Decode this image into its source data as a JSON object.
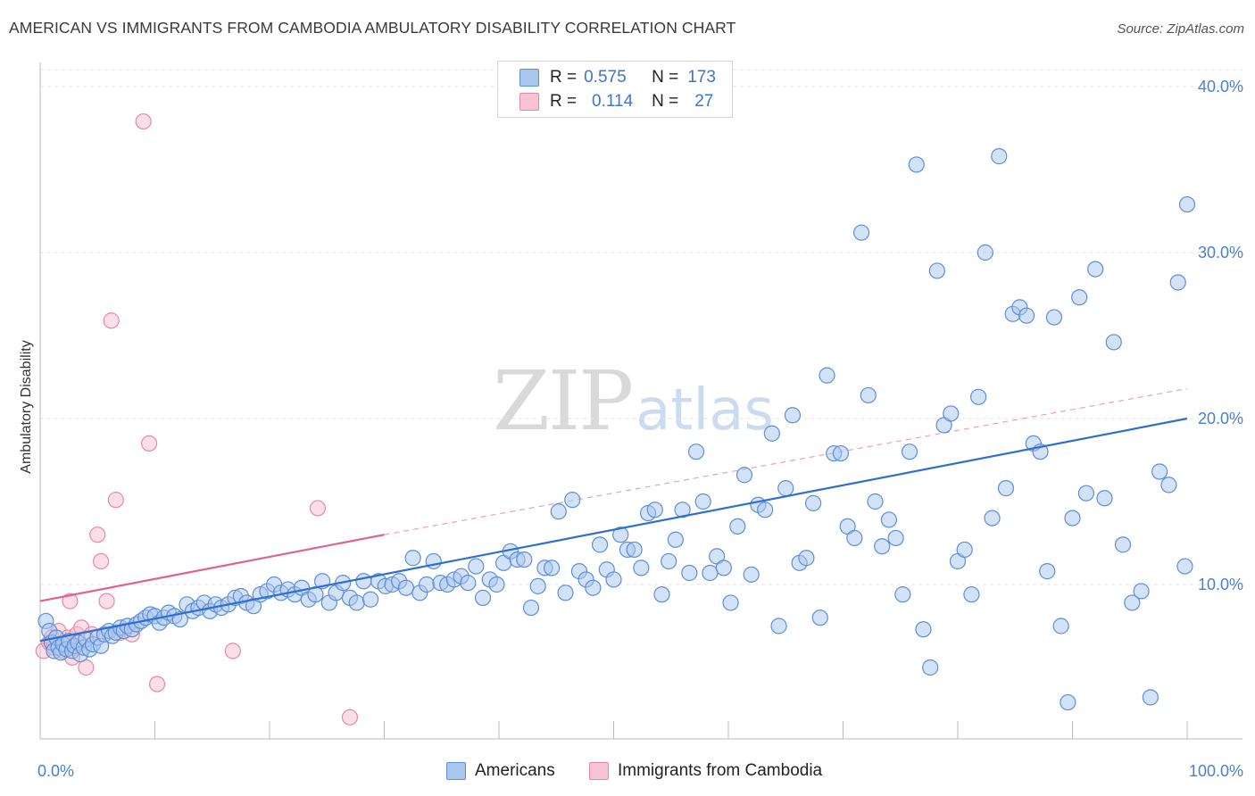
{
  "header": {
    "title": "AMERICAN VS IMMIGRANTS FROM CAMBODIA AMBULATORY DISABILITY CORRELATION CHART",
    "source": "Source: ZipAtlas.com"
  },
  "watermark": {
    "zip": "ZIP",
    "atlas": "atlas"
  },
  "legend": {
    "americans": {
      "r_label": "R =",
      "r_value": "0.575",
      "n_label": "N =",
      "n_value": "173"
    },
    "cambodia": {
      "r_label": "R =",
      "r_value": "0.114",
      "n_label": "N =",
      "n_value": "27"
    }
  },
  "bottom_legend": {
    "americans": "Americans",
    "cambodia": "Immigrants from Cambodia"
  },
  "colors": {
    "americans_fill": "#a9c6ef",
    "americans_stroke": "#5b8fd8",
    "americans_line": "#2f6fcf",
    "cambodia_fill": "#f7c3d2",
    "cambodia_stroke": "#e48aa6",
    "cambodia_line": "#e0628c",
    "grid": "#e2e2e2",
    "tick_text": "#4a7fd0"
  },
  "chart_data": {
    "type": "scatter",
    "title": "AMERICAN VS IMMIGRANTS FROM CAMBODIA AMBULATORY DISABILITY CORRELATION CHART",
    "xlabel": "",
    "ylabel": "Ambulatory Disability",
    "xlim": [
      0,
      100
    ],
    "ylim": [
      0,
      42
    ],
    "x_tick_labels": [
      "0.0%",
      "100.0%"
    ],
    "y_ticks": [
      10,
      20,
      30,
      40
    ],
    "y_tick_labels": [
      "10.0%",
      "20.0%",
      "30.0%",
      "40.0%"
    ],
    "grid": "horizontal dashed",
    "legend_placement": "top-center",
    "series": [
      {
        "name": "Americans",
        "r": 0.575,
        "n": 173,
        "trend": {
          "x": [
            0,
            100
          ],
          "y": [
            6.6,
            20.0
          ],
          "style": "solid"
        },
        "points": [
          [
            0.5,
            7.8
          ],
          [
            0.8,
            7.2
          ],
          [
            1.0,
            6.5
          ],
          [
            1.2,
            6.0
          ],
          [
            1.4,
            6.8
          ],
          [
            1.6,
            6.2
          ],
          [
            1.8,
            5.9
          ],
          [
            2.0,
            6.4
          ],
          [
            2.3,
            6.1
          ],
          [
            2.5,
            6.6
          ],
          [
            2.8,
            6.0
          ],
          [
            3.0,
            6.3
          ],
          [
            3.3,
            6.5
          ],
          [
            3.5,
            5.8
          ],
          [
            3.8,
            6.2
          ],
          [
            4.0,
            6.7
          ],
          [
            4.3,
            6.1
          ],
          [
            4.6,
            6.4
          ],
          [
            5.0,
            6.8
          ],
          [
            5.3,
            6.3
          ],
          [
            5.6,
            7.0
          ],
          [
            6.0,
            7.2
          ],
          [
            6.3,
            6.9
          ],
          [
            6.6,
            7.1
          ],
          [
            7.0,
            7.4
          ],
          [
            7.3,
            7.2
          ],
          [
            7.6,
            7.5
          ],
          [
            8.0,
            7.3
          ],
          [
            8.4,
            7.6
          ],
          [
            8.8,
            7.8
          ],
          [
            9.2,
            8.0
          ],
          [
            9.6,
            8.2
          ],
          [
            10.0,
            8.1
          ],
          [
            10.4,
            7.7
          ],
          [
            10.8,
            8.0
          ],
          [
            11.2,
            8.3
          ],
          [
            11.7,
            8.1
          ],
          [
            12.2,
            7.9
          ],
          [
            12.8,
            8.8
          ],
          [
            13.3,
            8.4
          ],
          [
            13.8,
            8.6
          ],
          [
            14.3,
            8.9
          ],
          [
            14.8,
            8.4
          ],
          [
            15.3,
            8.8
          ],
          [
            15.8,
            8.6
          ],
          [
            16.4,
            8.8
          ],
          [
            17.0,
            9.2
          ],
          [
            17.5,
            9.3
          ],
          [
            18.0,
            8.9
          ],
          [
            18.6,
            8.7
          ],
          [
            19.2,
            9.4
          ],
          [
            19.8,
            9.6
          ],
          [
            20.4,
            10.0
          ],
          [
            21.0,
            9.5
          ],
          [
            21.6,
            9.7
          ],
          [
            22.2,
            9.4
          ],
          [
            22.8,
            9.8
          ],
          [
            23.4,
            9.1
          ],
          [
            24.0,
            9.4
          ],
          [
            24.6,
            10.2
          ],
          [
            25.2,
            8.9
          ],
          [
            25.8,
            9.5
          ],
          [
            26.4,
            10.1
          ],
          [
            27.0,
            9.2
          ],
          [
            27.6,
            8.9
          ],
          [
            28.2,
            10.2
          ],
          [
            28.8,
            9.1
          ],
          [
            29.5,
            10.2
          ],
          [
            30.1,
            9.9
          ],
          [
            30.7,
            10.0
          ],
          [
            31.3,
            10.2
          ],
          [
            31.9,
            9.8
          ],
          [
            32.5,
            11.6
          ],
          [
            33.1,
            9.5
          ],
          [
            33.7,
            10.0
          ],
          [
            34.3,
            11.4
          ],
          [
            34.9,
            10.1
          ],
          [
            35.5,
            10.0
          ],
          [
            36.1,
            10.3
          ],
          [
            36.7,
            10.5
          ],
          [
            37.3,
            10.1
          ],
          [
            38.0,
            11.1
          ],
          [
            38.6,
            9.2
          ],
          [
            39.2,
            10.3
          ],
          [
            39.8,
            10.0
          ],
          [
            40.4,
            11.3
          ],
          [
            41.0,
            12.0
          ],
          [
            41.6,
            11.5
          ],
          [
            42.2,
            11.5
          ],
          [
            42.8,
            8.6
          ],
          [
            43.4,
            9.9
          ],
          [
            44.0,
            11.0
          ],
          [
            44.6,
            11.0
          ],
          [
            45.2,
            14.4
          ],
          [
            45.8,
            9.5
          ],
          [
            46.4,
            15.1
          ],
          [
            47.0,
            10.8
          ],
          [
            47.6,
            10.3
          ],
          [
            48.2,
            9.8
          ],
          [
            48.8,
            12.4
          ],
          [
            49.4,
            10.9
          ],
          [
            50.0,
            10.3
          ],
          [
            50.6,
            13.0
          ],
          [
            51.2,
            12.1
          ],
          [
            51.8,
            12.1
          ],
          [
            52.4,
            11.0
          ],
          [
            53.0,
            14.3
          ],
          [
            53.6,
            14.5
          ],
          [
            54.2,
            9.4
          ],
          [
            54.8,
            11.4
          ],
          [
            55.4,
            12.7
          ],
          [
            56.0,
            14.5
          ],
          [
            56.6,
            10.7
          ],
          [
            57.2,
            18.0
          ],
          [
            57.8,
            15.0
          ],
          [
            58.4,
            10.7
          ],
          [
            59.0,
            11.7
          ],
          [
            59.6,
            11.0
          ],
          [
            60.2,
            8.9
          ],
          [
            60.8,
            13.5
          ],
          [
            61.4,
            16.6
          ],
          [
            62.0,
            10.6
          ],
          [
            62.6,
            14.8
          ],
          [
            63.2,
            14.5
          ],
          [
            63.8,
            19.1
          ],
          [
            64.4,
            7.5
          ],
          [
            65.0,
            15.8
          ],
          [
            65.6,
            20.2
          ],
          [
            66.2,
            11.3
          ],
          [
            66.8,
            11.6
          ],
          [
            67.4,
            14.9
          ],
          [
            68.0,
            8.0
          ],
          [
            68.6,
            22.6
          ],
          [
            69.2,
            17.9
          ],
          [
            69.8,
            17.9
          ],
          [
            70.4,
            13.5
          ],
          [
            71.0,
            12.8
          ],
          [
            71.6,
            31.2
          ],
          [
            72.2,
            21.4
          ],
          [
            72.8,
            15.0
          ],
          [
            73.4,
            12.3
          ],
          [
            74.0,
            13.9
          ],
          [
            74.6,
            12.8
          ],
          [
            75.2,
            9.4
          ],
          [
            75.8,
            18.0
          ],
          [
            76.4,
            35.3
          ],
          [
            77.0,
            7.3
          ],
          [
            77.6,
            5.0
          ],
          [
            78.2,
            28.9
          ],
          [
            78.8,
            19.6
          ],
          [
            79.4,
            20.3
          ],
          [
            80.0,
            11.4
          ],
          [
            80.6,
            12.1
          ],
          [
            81.2,
            9.4
          ],
          [
            81.8,
            21.3
          ],
          [
            82.4,
            30.0
          ],
          [
            83.0,
            14.0
          ],
          [
            83.6,
            35.8
          ],
          [
            84.2,
            15.8
          ],
          [
            84.8,
            26.3
          ],
          [
            85.4,
            26.7
          ],
          [
            86.0,
            26.2
          ],
          [
            86.6,
            18.5
          ],
          [
            87.2,
            18.0
          ],
          [
            87.8,
            10.8
          ],
          [
            88.4,
            26.1
          ],
          [
            89.0,
            7.5
          ],
          [
            89.6,
            2.9
          ],
          [
            90.0,
            14.0
          ],
          [
            90.6,
            27.3
          ],
          [
            91.2,
            15.5
          ],
          [
            92.0,
            29.0
          ],
          [
            92.8,
            15.2
          ],
          [
            93.6,
            24.6
          ],
          [
            94.4,
            12.4
          ],
          [
            95.2,
            8.9
          ],
          [
            96.0,
            9.6
          ],
          [
            96.8,
            3.2
          ],
          [
            97.6,
            16.8
          ],
          [
            98.4,
            16.0
          ],
          [
            99.2,
            28.2
          ],
          [
            99.8,
            11.1
          ],
          [
            100.6,
            32.9
          ]
        ]
      },
      {
        "name": "Immigrants from Cambodia",
        "r": 0.114,
        "n": 27,
        "trend": {
          "x": [
            0,
            30
          ],
          "y": [
            9.0,
            13.0
          ],
          "style": "solid",
          "extension_x": [
            30,
            100
          ],
          "extension_y": [
            13.0,
            21.8
          ],
          "extension_style": "dashed"
        },
        "points": [
          [
            0.3,
            6.0
          ],
          [
            0.8,
            6.5
          ],
          [
            1.2,
            6.2
          ],
          [
            1.6,
            7.2
          ],
          [
            2.0,
            6.0
          ],
          [
            2.4,
            6.8
          ],
          [
            2.8,
            5.6
          ],
          [
            3.2,
            7.0
          ],
          [
            3.6,
            7.4
          ],
          [
            4.0,
            5.0
          ],
          [
            4.5,
            7.0
          ],
          [
            5.0,
            13.0
          ],
          [
            5.3,
            11.4
          ],
          [
            5.8,
            9.0
          ],
          [
            6.2,
            25.9
          ],
          [
            6.6,
            15.1
          ],
          [
            7.0,
            7.1
          ],
          [
            8.0,
            7.0
          ],
          [
            9.0,
            37.9
          ],
          [
            9.5,
            18.5
          ],
          [
            10.2,
            4.0
          ],
          [
            16.8,
            6.0
          ],
          [
            24.2,
            14.6
          ],
          [
            27.0,
            2.0
          ],
          [
            2.6,
            9.0
          ],
          [
            1.0,
            6.8
          ],
          [
            3.0,
            6.2
          ]
        ]
      }
    ]
  }
}
